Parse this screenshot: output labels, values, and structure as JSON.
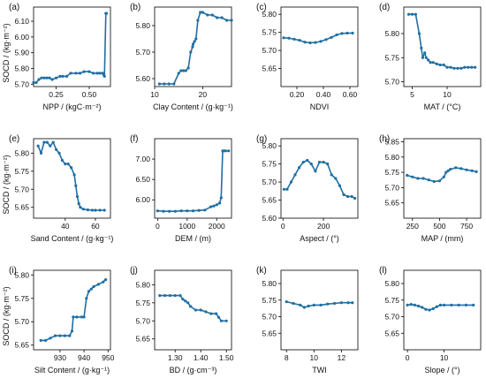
{
  "figure": {
    "line_color": "#1f6fa3",
    "ylabel_row": "SOCD / (kg·m⁻²)"
  },
  "chart_data": [
    {
      "id": "a",
      "type": "line",
      "panel_label": "(a)",
      "xlabel": "NPP / (kgC·m⁻²)",
      "xlim": [
        0.08,
        0.66
      ],
      "ylim": [
        5.685,
        6.19
      ],
      "xticks": [
        0.25,
        0.5
      ],
      "xtick_labels": [
        "0.25",
        "0.50"
      ],
      "yticks": [
        5.7,
        5.8,
        5.9,
        6.0,
        6.1
      ],
      "ytick_labels": [
        "5.70",
        "5.80",
        "5.90",
        "6.00",
        "6.10"
      ],
      "x": [
        0.08,
        0.1,
        0.12,
        0.14,
        0.16,
        0.18,
        0.2,
        0.22,
        0.25,
        0.28,
        0.3,
        0.33,
        0.36,
        0.4,
        0.43,
        0.46,
        0.5,
        0.53,
        0.56,
        0.58,
        0.6,
        0.61,
        0.615,
        0.625,
        0.63
      ],
      "y": [
        5.71,
        5.71,
        5.73,
        5.74,
        5.74,
        5.74,
        5.74,
        5.73,
        5.74,
        5.75,
        5.75,
        5.75,
        5.77,
        5.77,
        5.77,
        5.78,
        5.78,
        5.77,
        5.77,
        5.77,
        5.77,
        5.76,
        5.75,
        6.15,
        6.15
      ]
    },
    {
      "id": "b",
      "type": "line",
      "panel_label": "(b)",
      "xlabel": "Clay Content / (g·kg⁻¹)",
      "xlim": [
        10,
        26
      ],
      "ylim": [
        5.57,
        5.87
      ],
      "xticks": [
        10,
        20
      ],
      "xtick_labels": [
        "10",
        "20"
      ],
      "yticks": [
        5.6,
        5.7,
        5.8
      ],
      "ytick_labels": [
        "5.60",
        "5.70",
        "5.80"
      ],
      "x": [
        11,
        12,
        13,
        14,
        15,
        15.5,
        16,
        16.5,
        17,
        17.5,
        17.9,
        18,
        18.3,
        18.6,
        19,
        19.5,
        20,
        21,
        22,
        23,
        24,
        25,
        26
      ],
      "y": [
        5.58,
        5.58,
        5.58,
        5.58,
        5.62,
        5.63,
        5.63,
        5.63,
        5.64,
        5.7,
        5.72,
        5.73,
        5.74,
        5.75,
        5.82,
        5.85,
        5.85,
        5.84,
        5.84,
        5.83,
        5.83,
        5.82,
        5.82
      ]
    },
    {
      "id": "c",
      "type": "line",
      "panel_label": "(c)",
      "xlabel": "NDVI",
      "xlim": [
        0.08,
        0.66
      ],
      "ylim": [
        5.6,
        5.82
      ],
      "xticks": [
        0.2,
        0.4,
        0.6
      ],
      "xtick_labels": [
        "0.20",
        "0.40",
        "0.60"
      ],
      "yticks": [
        5.65,
        5.7,
        5.75,
        5.8
      ],
      "ytick_labels": [
        "5.65",
        "5.70",
        "5.75",
        "5.80"
      ],
      "x": [
        0.1,
        0.14,
        0.18,
        0.22,
        0.26,
        0.3,
        0.34,
        0.38,
        0.42,
        0.46,
        0.5,
        0.54,
        0.58,
        0.62
      ],
      "y": [
        5.735,
        5.734,
        5.731,
        5.728,
        5.723,
        5.721,
        5.722,
        5.725,
        5.73,
        5.736,
        5.743,
        5.747,
        5.748,
        5.748
      ]
    },
    {
      "id": "d",
      "type": "line",
      "panel_label": "(d)",
      "xlabel": "MAT / (°C)",
      "xlim": [
        3.8,
        14.8
      ],
      "ylim": [
        5.69,
        5.855
      ],
      "xticks": [
        5,
        10
      ],
      "xtick_labels": [
        "5",
        "10"
      ],
      "yticks": [
        5.7,
        5.75,
        5.8
      ],
      "ytick_labels": [
        "5.70",
        "5.75",
        "5.80"
      ],
      "x": [
        4.5,
        5,
        5.5,
        6,
        6.3,
        6.5,
        6.8,
        7,
        7.3,
        7.6,
        8,
        8.5,
        9,
        9.5,
        10,
        10.5,
        11,
        11.5,
        12,
        12.5,
        13,
        13.5,
        14
      ],
      "y": [
        5.84,
        5.84,
        5.84,
        5.8,
        5.77,
        5.75,
        5.76,
        5.75,
        5.745,
        5.74,
        5.74,
        5.737,
        5.735,
        5.735,
        5.73,
        5.73,
        5.728,
        5.728,
        5.728,
        5.73,
        5.73,
        5.73,
        5.73
      ]
    },
    {
      "id": "e",
      "type": "line",
      "panel_label": "(e)",
      "xlabel": "Sand Content / (g·kg⁻¹)",
      "xlim": [
        19,
        70
      ],
      "ylim": [
        5.62,
        5.84
      ],
      "xticks": [
        40,
        60
      ],
      "xtick_labels": [
        "40",
        "60"
      ],
      "yticks": [
        5.65,
        5.7,
        5.75,
        5.8
      ],
      "ytick_labels": [
        "5.65",
        "5.70",
        "5.75",
        "5.80"
      ],
      "x": [
        22,
        24,
        26,
        28,
        30,
        32,
        34,
        36,
        38,
        40,
        42,
        44,
        46,
        47,
        48,
        49,
        50,
        52,
        55,
        58,
        60,
        63,
        66
      ],
      "y": [
        5.82,
        5.8,
        5.83,
        5.83,
        5.82,
        5.83,
        5.81,
        5.8,
        5.78,
        5.77,
        5.77,
        5.76,
        5.74,
        5.71,
        5.68,
        5.66,
        5.65,
        5.645,
        5.643,
        5.642,
        5.642,
        5.642,
        5.642
      ]
    },
    {
      "id": "f",
      "type": "line",
      "panel_label": "(f)",
      "xlabel": "DEM / (m)",
      "xlim": [
        -100,
        2500
      ],
      "ylim": [
        5.55,
        7.5
      ],
      "xticks": [
        0,
        1000,
        2000
      ],
      "xtick_labels": [
        "0",
        "1000",
        "2000"
      ],
      "yticks": [
        6.0,
        6.5,
        7.0
      ],
      "ytick_labels": [
        "6.00",
        "6.50",
        "7.00"
      ],
      "x": [
        0,
        200,
        400,
        600,
        800,
        1000,
        1200,
        1400,
        1600,
        1800,
        1900,
        2000,
        2100,
        2150,
        2200,
        2250,
        2300,
        2400
      ],
      "y": [
        5.73,
        5.72,
        5.72,
        5.72,
        5.73,
        5.73,
        5.73,
        5.74,
        5.75,
        5.83,
        5.85,
        5.88,
        5.92,
        6.05,
        7.2,
        7.2,
        7.2,
        7.2
      ]
    },
    {
      "id": "g",
      "type": "line",
      "panel_label": "(g)",
      "xlabel": "Aspect / (°)",
      "xlim": [
        -10,
        370
      ],
      "ylim": [
        5.6,
        5.82
      ],
      "xticks": [
        0,
        200
      ],
      "xtick_labels": [
        "0",
        "200"
      ],
      "yticks": [
        5.6,
        5.65,
        5.7,
        5.75,
        5.8
      ],
      "ytick_labels": [
        "5.60",
        "5.65",
        "5.70",
        "5.75",
        "5.80"
      ],
      "x": [
        5,
        20,
        40,
        60,
        80,
        100,
        120,
        140,
        160,
        180,
        200,
        220,
        240,
        260,
        280,
        300,
        320,
        340,
        355
      ],
      "y": [
        5.68,
        5.68,
        5.7,
        5.72,
        5.74,
        5.755,
        5.76,
        5.75,
        5.73,
        5.755,
        5.755,
        5.75,
        5.72,
        5.71,
        5.69,
        5.665,
        5.66,
        5.66,
        5.655
      ]
    },
    {
      "id": "h",
      "type": "line",
      "panel_label": "(h)",
      "xlabel": "MAP / (mm)",
      "xlim": [
        170,
        880
      ],
      "ylim": [
        5.6,
        5.86
      ],
      "xticks": [
        250,
        500,
        750
      ],
      "xtick_labels": [
        "250",
        "500",
        "750"
      ],
      "yticks": [
        5.65,
        5.7,
        5.75,
        5.8,
        5.85
      ],
      "ytick_labels": [
        "5.65",
        "5.70",
        "5.75",
        "5.80",
        "5.85"
      ],
      "x": [
        200,
        250,
        300,
        350,
        400,
        450,
        500,
        540,
        560,
        580,
        600,
        650,
        700,
        750,
        800,
        840
      ],
      "y": [
        5.74,
        5.735,
        5.73,
        5.73,
        5.725,
        5.72,
        5.722,
        5.735,
        5.75,
        5.755,
        5.76,
        5.765,
        5.762,
        5.758,
        5.755,
        5.752
      ]
    },
    {
      "id": "i",
      "type": "line",
      "panel_label": "(i)",
      "xlabel": "Silt Content / (g·kg⁻¹)",
      "xlim": [
        919,
        951
      ],
      "ylim": [
        5.64,
        5.81
      ],
      "xticks": [
        930,
        940,
        950
      ],
      "xtick_labels": [
        "930",
        "940",
        "950"
      ],
      "yticks": [
        5.65,
        5.7,
        5.75,
        5.8
      ],
      "ytick_labels": [
        "5.65",
        "5.70",
        "5.75",
        "5.80"
      ],
      "x": [
        922,
        924,
        926,
        928,
        930,
        932,
        934,
        935,
        935.5,
        937,
        939,
        940,
        941,
        942,
        943,
        944,
        946,
        948,
        949
      ],
      "y": [
        5.66,
        5.66,
        5.665,
        5.67,
        5.67,
        5.67,
        5.67,
        5.68,
        5.71,
        5.71,
        5.71,
        5.71,
        5.75,
        5.765,
        5.77,
        5.775,
        5.78,
        5.785,
        5.79
      ]
    },
    {
      "id": "j",
      "type": "line",
      "panel_label": "(j)",
      "xlabel": "BD / (g·cm⁻³)",
      "xlim": [
        1.22,
        1.52
      ],
      "ylim": [
        5.62,
        5.84
      ],
      "xticks": [
        1.3,
        1.4,
        1.5
      ],
      "xtick_labels": [
        "1.30",
        "1.40",
        "1.50"
      ],
      "yticks": [
        5.65,
        5.7,
        5.75,
        5.8
      ],
      "ytick_labels": [
        "5.65",
        "5.70",
        "5.75",
        "5.80"
      ],
      "x": [
        1.24,
        1.26,
        1.28,
        1.3,
        1.32,
        1.33,
        1.34,
        1.35,
        1.36,
        1.38,
        1.4,
        1.42,
        1.44,
        1.46,
        1.47,
        1.48,
        1.5
      ],
      "y": [
        5.77,
        5.77,
        5.77,
        5.77,
        5.77,
        5.76,
        5.755,
        5.75,
        5.74,
        5.73,
        5.73,
        5.725,
        5.72,
        5.72,
        5.71,
        5.7,
        5.7
      ]
    },
    {
      "id": "k",
      "type": "line",
      "panel_label": "(k)",
      "xlabel": "TWI",
      "xlim": [
        7.6,
        13.2
      ],
      "ylim": [
        5.6,
        5.84
      ],
      "xticks": [
        8,
        10,
        12
      ],
      "xtick_labels": [
        "8",
        "10",
        "12"
      ],
      "yticks": [
        5.65,
        5.7,
        5.75,
        5.8
      ],
      "ytick_labels": [
        "5.65",
        "5.70",
        "5.75",
        "5.80"
      ],
      "x": [
        8,
        8.5,
        9,
        9.3,
        9.6,
        10,
        10.5,
        11,
        11.5,
        12,
        12.5,
        12.8
      ],
      "y": [
        5.745,
        5.74,
        5.735,
        5.728,
        5.732,
        5.735,
        5.735,
        5.738,
        5.74,
        5.742,
        5.742,
        5.742
      ]
    },
    {
      "id": "l",
      "type": "line",
      "panel_label": "(l)",
      "xlabel": "Slope / (°)",
      "xlim": [
        -1,
        20
      ],
      "ylim": [
        5.6,
        5.84
      ],
      "xticks": [
        0,
        10
      ],
      "xtick_labels": [
        "0",
        "10"
      ],
      "yticks": [
        5.65,
        5.7,
        5.75,
        5.8
      ],
      "ytick_labels": [
        "5.65",
        "5.70",
        "5.75",
        "5.80"
      ],
      "x": [
        0,
        1,
        2,
        3,
        4,
        5,
        6,
        7,
        8,
        9,
        10,
        12,
        14,
        16,
        18
      ],
      "y": [
        5.735,
        5.737,
        5.735,
        5.732,
        5.728,
        5.722,
        5.72,
        5.724,
        5.73,
        5.735,
        5.735,
        5.735,
        5.735,
        5.735,
        5.735
      ]
    }
  ]
}
